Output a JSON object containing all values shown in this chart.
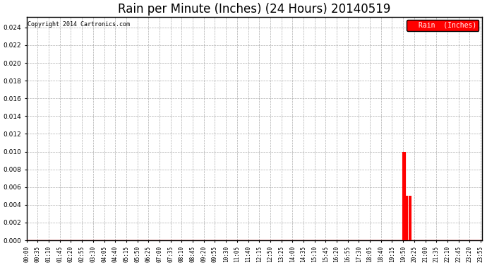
{
  "title": "Rain per Minute (Inches) (24 Hours) 20140519",
  "copyright_text": "Copyright 2014 Cartronics.com",
  "legend_label": "Rain  (Inches)",
  "ylim": [
    0,
    0.0252
  ],
  "yticks": [
    0.0,
    0.002,
    0.004,
    0.006,
    0.008,
    0.01,
    0.012,
    0.014,
    0.016,
    0.018,
    0.02,
    0.022,
    0.024
  ],
  "baseline_y": 0.0,
  "line_color": "#ff0000",
  "background_color": "#ffffff",
  "grid_color": "#999999",
  "legend_bg": "#ff0000",
  "legend_fg": "#ffffff",
  "title_fontsize": 12,
  "tick_fontsize": 5.5,
  "rain_spikes": [
    {
      "minute": 1190,
      "value": 0.01
    },
    {
      "minute": 1191,
      "value": 0.01
    },
    {
      "minute": 1192,
      "value": 0.01
    },
    {
      "minute": 1193,
      "value": 0.01
    },
    {
      "minute": 1194,
      "value": 0.01
    },
    {
      "minute": 1195,
      "value": 0.01
    },
    {
      "minute": 1196,
      "value": 0.01
    },
    {
      "minute": 1197,
      "value": 0.01
    },
    {
      "minute": 1200,
      "value": 0.005
    },
    {
      "minute": 1201,
      "value": 0.005
    },
    {
      "minute": 1203,
      "value": 0.005
    },
    {
      "minute": 1210,
      "value": 0.005
    },
    {
      "minute": 1215,
      "value": 0.005
    }
  ],
  "total_minutes": 1440,
  "xtick_interval": 35
}
